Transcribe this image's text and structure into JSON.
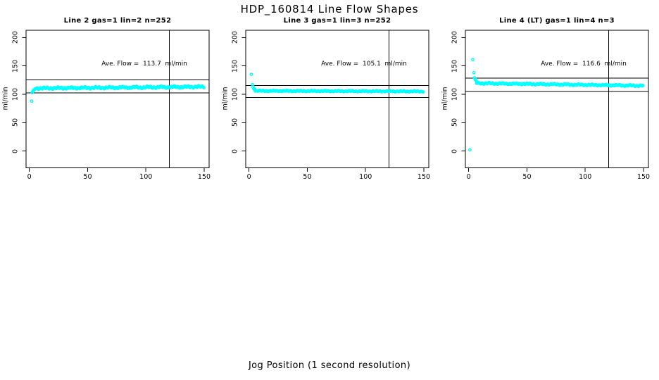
{
  "figure": {
    "main_title": "HDP_160814  Line Flow Shapes",
    "bottom_axis_label": "Jog Position (1 second resolution)",
    "point_color": "#00ffff",
    "line_color": "#000000"
  },
  "chart_data": {
    "type": "scatter",
    "title": "HDP_160814  Line Flow Shapes",
    "xlabel": "Jog Position (1 second resolution)",
    "ylabel": "ml/min",
    "xlim": [
      0,
      150
    ],
    "ylim": [
      0,
      200
    ],
    "x_ticks": [
      0,
      50,
      100,
      150
    ],
    "y_ticks": [
      0,
      50,
      100,
      150,
      200
    ],
    "x_tick_labels": [
      "0",
      "50",
      "100",
      "150"
    ],
    "y_tick_labels": [
      "0",
      "50",
      "100",
      "150",
      "200"
    ],
    "grid": false,
    "legend": "none",
    "panels": [
      {
        "title": "Line 2 gas=1 lin=2 n=252",
        "annotation": "Ave. Flow =  113.7  ml/min",
        "ave_flow": 113.7,
        "ref_line_upper": 125.1,
        "ref_line_lower": 102.3,
        "ref_line_vertical_x": 120,
        "lead_points": [
          [
            2,
            88
          ],
          [
            2.5,
            103
          ],
          [
            3,
            105
          ],
          [
            3.5,
            106.5
          ],
          [
            4,
            107.5
          ],
          [
            4.5,
            108.5
          ]
        ],
        "band": {
          "x_start": 5,
          "x_end": 150,
          "step": 0.75,
          "y_start": 110.5,
          "y_end": 113.2,
          "jitter": 2.1
        }
      },
      {
        "title": "Line 3 gas=1 lin=3 n=252",
        "annotation": "Ave. Flow =  105.1  ml/min",
        "ave_flow": 105.1,
        "ref_line_upper": 115.6,
        "ref_line_lower": 94.6,
        "ref_line_vertical_x": 120,
        "lead_points": [
          [
            2,
            135
          ],
          [
            3,
            117
          ],
          [
            3.5,
            113
          ],
          [
            4,
            110.5
          ],
          [
            4.5,
            109
          ],
          [
            5,
            107.5
          ]
        ],
        "band": {
          "x_start": 5.5,
          "x_end": 150,
          "step": 0.75,
          "y_start": 106,
          "y_end": 105,
          "jitter": 1.1
        }
      },
      {
        "title": "Line 4 (LT) gas=1 lin=4 n=3",
        "annotation": "Ave. Flow =  116.6  ml/min",
        "ave_flow": 116.6,
        "ref_line_upper": 128.3,
        "ref_line_lower": 104.9,
        "ref_line_vertical_x": 120,
        "lead_points": [
          [
            1,
            2
          ],
          [
            3.5,
            161
          ],
          [
            4.5,
            138
          ],
          [
            5,
            129
          ],
          [
            5.5,
            127
          ],
          [
            6,
            125
          ],
          [
            6.5,
            123.5
          ],
          [
            7,
            122
          ]
        ],
        "band": {
          "x_start": 7,
          "x_end": 150,
          "step": 0.75,
          "y_start": 119.5,
          "y_end": 115,
          "jitter": 1.5
        }
      }
    ]
  }
}
